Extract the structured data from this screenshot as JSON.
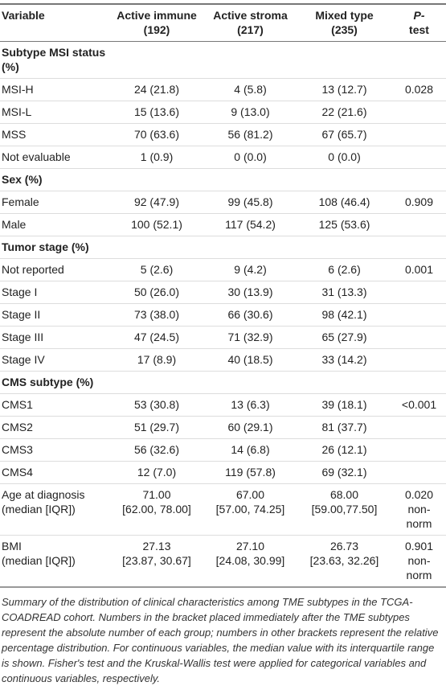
{
  "table": {
    "header": [
      [
        "Variable"
      ],
      [
        "Active immune",
        "(192)"
      ],
      [
        "Active stroma",
        "(217)"
      ],
      [
        "Mixed type",
        "(235)"
      ],
      [
        "P-",
        "test"
      ]
    ],
    "rows": [
      {
        "heading": "Subtype MSI status (%)"
      },
      [
        "MSI-H",
        "24 (21.8)",
        "4 (5.8)",
        "13 (12.7)",
        "0.028"
      ],
      [
        "MSI-L",
        "15 (13.6)",
        "9 (13.0)",
        "22 (21.6)",
        null
      ],
      [
        "MSS",
        "70 (63.6)",
        "56 (81.2)",
        "67 (65.7)",
        null
      ],
      [
        "Not evaluable",
        "1 (0.9)",
        "0 (0.0)",
        "0 (0.0)",
        null
      ],
      {
        "heading": "Sex (%)"
      },
      [
        "Female",
        "92 (47.9)",
        "99 (45.8)",
        "108 (46.4)",
        "0.909"
      ],
      [
        "Male",
        "100 (52.1)",
        "117 (54.2)",
        "125 (53.6)",
        null
      ],
      {
        "heading": "Tumor stage (%)"
      },
      [
        "Not reported",
        "5 (2.6)",
        "9 (4.2)",
        "6 (2.6)",
        "0.001"
      ],
      [
        "Stage I",
        "50 (26.0)",
        "30 (13.9)",
        "31 (13.3)",
        null
      ],
      [
        "Stage II",
        "73 (38.0)",
        "66 (30.6)",
        "98 (42.1)",
        null
      ],
      [
        "Stage III",
        "47 (24.5)",
        "71 (32.9)",
        "65 (27.9)",
        null
      ],
      [
        "Stage IV",
        "17 (8.9)",
        "40 (18.5)",
        "33 (14.2)",
        null
      ],
      {
        "heading": "CMS subtype (%)"
      },
      [
        "CMS1",
        "53 (30.8)",
        "13 (6.3)",
        "39 (18.1)",
        "<0.001"
      ],
      [
        "CMS2",
        "51 (29.7)",
        "60 (29.1)",
        "81 (37.7)",
        null
      ],
      [
        "CMS3",
        "56 (32.6)",
        "14 (6.8)",
        "26 (12.1)",
        null
      ],
      [
        "CMS4",
        "12 (7.0)",
        "119 (57.8)",
        "69 (32.1)",
        null
      ],
      [
        [
          "Age at diagnosis",
          "(median [IQR])"
        ],
        [
          "71.00",
          "[62.00, 78.00]"
        ],
        [
          "67.00",
          "[57.00, 74.25]"
        ],
        [
          "68.00",
          "[59.00,77.50]"
        ],
        [
          "0.020",
          "non-norm"
        ]
      ],
      [
        [
          "BMI",
          "(median [IQR])"
        ],
        [
          "27.13",
          "[23.87, 30.67]"
        ],
        [
          "27.10",
          "[24.08, 30.99]"
        ],
        [
          "26.73",
          "[23.63, 32.26]"
        ],
        [
          "0.901",
          "non-norm"
        ]
      ]
    ]
  },
  "footnote": "Summary of the distribution of clinical characteristics among TME subtypes in the TCGA-COADREAD cohort. Numbers in the bracket placed immediately after the TME subtypes represent the absolute number of each group; numbers in other brackets represent the relative percentage distribution. For continuous variables, the median value with its interquartile range is shown. Fisher's test and the Kruskal-Wallis test were applied for categorical variables and continuous variables, respectively."
}
